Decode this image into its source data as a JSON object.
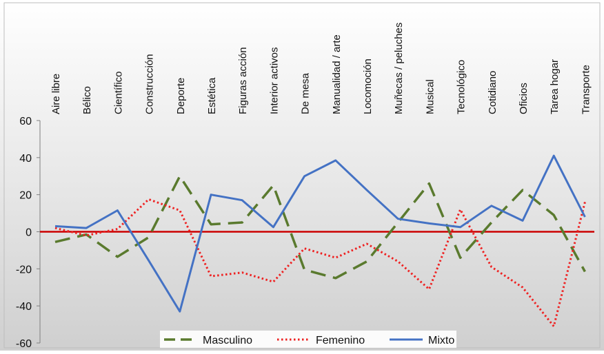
{
  "chart_data": {
    "type": "line",
    "categories": [
      "Aire libre",
      "Bélico",
      "Científico",
      "Construcción",
      "Deporte",
      "Estética",
      "Figuras acción",
      "Interior activos",
      "De mesa",
      "Manualidad / arte",
      "Locomoción",
      "Muñecas / peluches",
      "Musical",
      "Tecnológico",
      "Cotidiano",
      "Oficios",
      "Tarea hogar",
      "Transporte"
    ],
    "ylim": [
      -60,
      60
    ],
    "yticks": [
      -60,
      -40,
      -20,
      0,
      20,
      40,
      60
    ],
    "ytick_labels": [
      "-60",
      "-40",
      "-20",
      "0",
      "20",
      "40",
      "60"
    ],
    "grid": false,
    "legend_position": "bottom",
    "zero_line_color": "#cc0000",
    "series": [
      {
        "name": "Masculino",
        "color": "#5a7a2e",
        "style": "dashed",
        "values": [
          -5.5,
          -1.5,
          -13.5,
          -3,
          30,
          4,
          5,
          25,
          -20.5,
          -25,
          -16,
          5,
          26,
          -14,
          5,
          22.5,
          9,
          -21.5
        ]
      },
      {
        "name": "Femenino",
        "color": "#ee2222",
        "style": "dotted",
        "values": [
          2,
          -2,
          1.5,
          17.5,
          11.5,
          -24,
          -22,
          -27,
          -9,
          -14,
          -6.5,
          -16,
          -31,
          12,
          -19,
          -30,
          -51,
          16
        ]
      },
      {
        "name": "Mixto",
        "color": "#4472c4",
        "style": "solid",
        "values": [
          3,
          2,
          11.5,
          -15.5,
          -43,
          20,
          17,
          2.5,
          30,
          38.5,
          22.5,
          7,
          4.5,
          2.5,
          14,
          6,
          41,
          8
        ]
      }
    ]
  }
}
